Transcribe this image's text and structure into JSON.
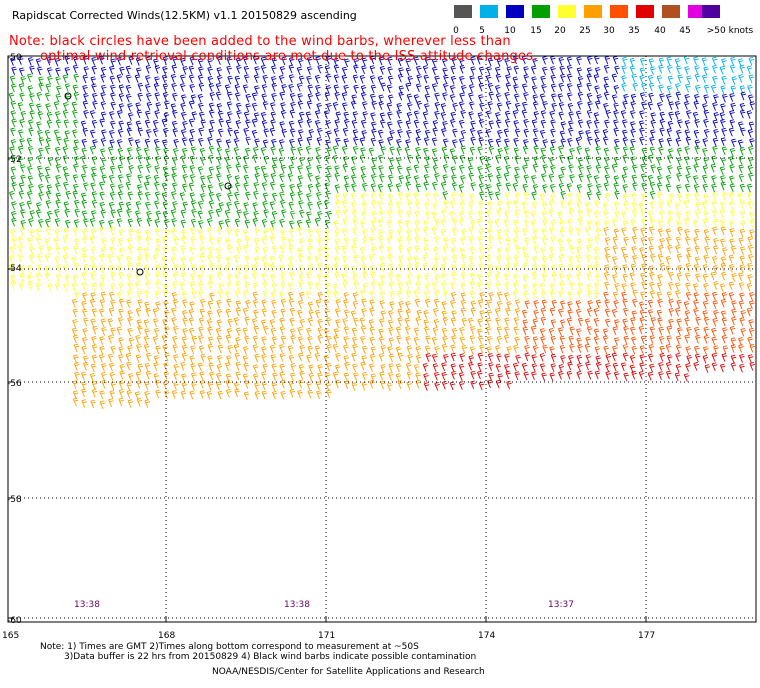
{
  "title": "Rapidscat Corrected Winds(12.5KM) v1.1 20150829 ascending",
  "note": {
    "line1": "Note: black circles have been added to the wind barbs, wherever less than",
    "line2": "optimal wind retrieval conditions are met due to the ISS attitude changes."
  },
  "legend": {
    "colors": [
      "#555555",
      "#00b0e8",
      "#0000c0",
      "#00a000",
      "#ffff30",
      "#ffa000",
      "#ff5000",
      "#e00000",
      "#b05020",
      "#e000e0",
      "#5000a0"
    ],
    "labels": [
      "0",
      "5",
      "10",
      "15",
      "20",
      "25",
      "30",
      "35",
      "40",
      "45",
      ">50 knots"
    ]
  },
  "axes": {
    "lat_labels": [
      "-50",
      "-52",
      "-54",
      "-56",
      "-58",
      "-60"
    ],
    "lon_labels": [
      "165",
      "168",
      "171",
      "174",
      "177"
    ]
  },
  "times": [
    "13:38",
    "13:38",
    "13:37"
  ],
  "footer": {
    "line1": "Note: 1) Times are GMT 2)Times along bottom correspond to measurement at ~50S",
    "line2": "3)Data buffer is 22 hrs from 20150829 4) Black wind barbs indicate possible contamination",
    "credit": "NOAA/NESDIS/Center for Satellite Applications and Research"
  }
}
